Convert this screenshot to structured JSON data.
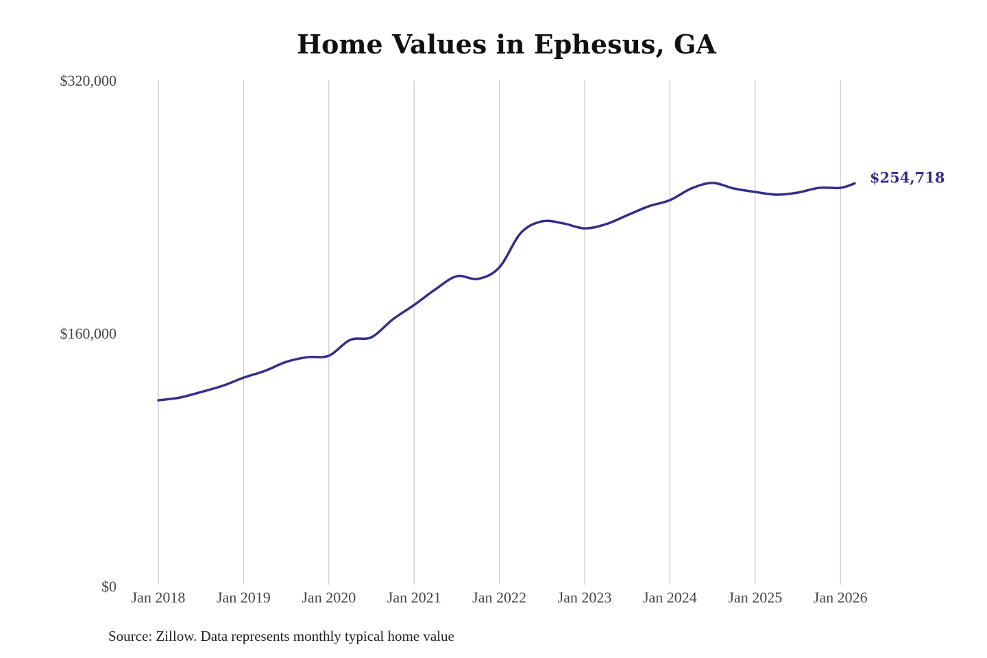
{
  "chart_data": {
    "type": "line",
    "title": "Home Values in Ephesus, GA",
    "xlabel": "",
    "ylabel": "",
    "ylim": [
      0,
      320000
    ],
    "y_ticks": [
      "$0",
      "$160,000",
      "$320,000"
    ],
    "y_tick_values": [
      0,
      160000,
      320000
    ],
    "x_ticks": [
      "Jan 2018",
      "Jan 2019",
      "Jan 2020",
      "Jan 2021",
      "Jan 2022",
      "Jan 2023",
      "Jan 2024",
      "Jan 2025",
      "Jan 2026"
    ],
    "x_tick_values": [
      "2018-01",
      "2019-01",
      "2020-01",
      "2021-01",
      "2022-01",
      "2023-01",
      "2024-01",
      "2025-01",
      "2026-01"
    ],
    "grid": "vertical",
    "line_color": "#332e8c",
    "end_label": "$254,718",
    "series": [
      {
        "x": [
          "2018-01",
          "2018-04",
          "2018-07",
          "2018-10",
          "2019-01",
          "2019-04",
          "2019-07",
          "2019-10",
          "2020-01",
          "2020-04",
          "2020-07",
          "2020-10",
          "2021-01",
          "2021-04",
          "2021-07",
          "2021-10",
          "2022-01",
          "2022-04",
          "2022-07",
          "2022-10",
          "2023-01",
          "2023-04",
          "2023-07",
          "2023-10",
          "2024-01",
          "2024-04",
          "2024-07",
          "2024-10",
          "2025-01",
          "2025-04",
          "2025-07",
          "2025-10",
          "2026-01",
          "2026-03"
        ],
        "values": [
          117500,
          119200,
          122700,
          126600,
          131800,
          136100,
          141800,
          144800,
          145700,
          155700,
          157400,
          168700,
          177800,
          187700,
          196000,
          194300,
          201600,
          223300,
          230700,
          229400,
          226300,
          228900,
          234600,
          240200,
          244100,
          251500,
          255000,
          251500,
          249300,
          247600,
          248900,
          251900,
          251900,
          254718
        ]
      }
    ]
  },
  "source": "Source: Zillow. Data represents monthly typical home value"
}
